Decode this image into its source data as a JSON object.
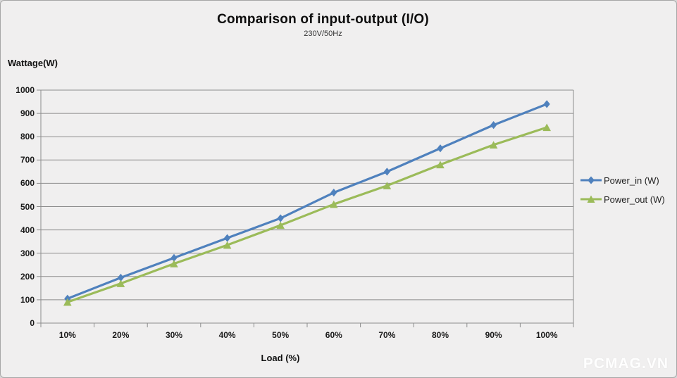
{
  "window": {
    "background_color": "#f0efef",
    "border_color": "#a6a6a6"
  },
  "chart_data": {
    "type": "line",
    "title": "Comparison of input-output (I/O)",
    "subtitle": "230V/50Hz",
    "xlabel": "Load (%)",
    "ylabel": "Wattage(W)",
    "categories": [
      "10%",
      "20%",
      "30%",
      "40%",
      "50%",
      "60%",
      "70%",
      "80%",
      "90%",
      "100%"
    ],
    "series": [
      {
        "name": "Power_in (W)",
        "color": "#4f81bd",
        "marker": "diamond",
        "values": [
          105,
          195,
          280,
          365,
          450,
          560,
          650,
          750,
          850,
          940
        ]
      },
      {
        "name": "Power_out (W)",
        "color": "#9bbb59",
        "marker": "triangle",
        "values": [
          90,
          170,
          255,
          335,
          420,
          510,
          590,
          680,
          765,
          840
        ]
      }
    ],
    "ylim": [
      0,
      1000
    ],
    "y_ticks": [
      0,
      100,
      200,
      300,
      400,
      500,
      600,
      700,
      800,
      900,
      1000
    ],
    "grid": true,
    "gridline_color": "#8c8c8c",
    "axis_color": "#8c8c8c",
    "legend_position": "right"
  },
  "watermark": {
    "text": "PCMAG.VN",
    "color": "#ffffff"
  }
}
